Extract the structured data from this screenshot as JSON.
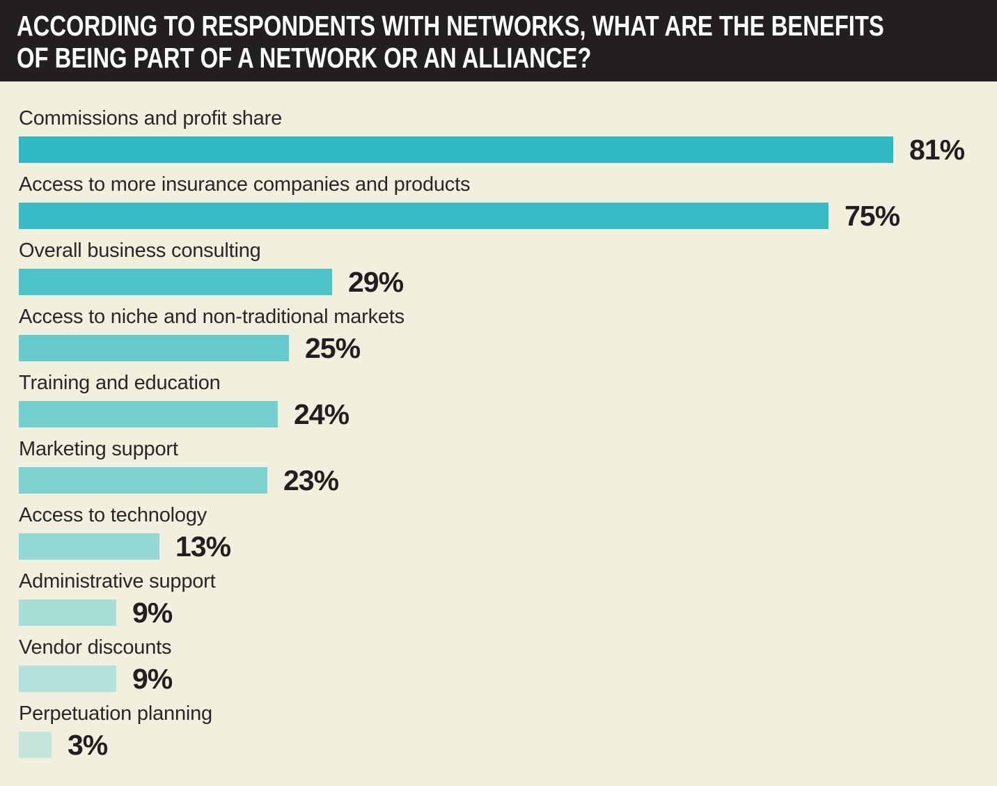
{
  "title": {
    "line1": "ACCORDING TO RESPONDENTS WITH NETWORKS, WHAT ARE THE BENEFITS",
    "line2": "OF BEING PART OF A NETWORK OR AN ALLIANCE?"
  },
  "colors": {
    "background": "#f1efdd",
    "header_background": "#231f20",
    "header_text": "#ffffff",
    "label_text": "#2a2627",
    "value_text": "#231f20"
  },
  "chart_data": {
    "type": "bar",
    "orientation": "horizontal",
    "title": "ACCORDING TO RESPONDENTS WITH NETWORKS, WHAT ARE THE BENEFITS OF BEING PART OF A NETWORK OR AN ALLIANCE?",
    "xlabel": "",
    "ylabel": "",
    "xlim": [
      0,
      81
    ],
    "grid": false,
    "legend": false,
    "categories": [
      "Commissions and profit share",
      "Access to more insurance companies and products",
      "Overall business consulting",
      "Access to niche and non-traditional markets",
      "Training and education",
      "Marketing support",
      "Access to technology",
      "Administrative support",
      "Vendor discounts",
      "Perpetuation planning"
    ],
    "values": [
      81,
      75,
      29,
      25,
      24,
      23,
      13,
      9,
      9,
      3
    ],
    "value_labels": [
      "81%",
      "75%",
      "29%",
      "25%",
      "24%",
      "23%",
      "13%",
      "9%",
      "9%",
      "3%"
    ],
    "bar_colors": [
      "#2fbac3",
      "#35bcc4",
      "#4ec4c9",
      "#65cbcc",
      "#73cfce",
      "#7dd2d0",
      "#92d9d3",
      "#a7ded7",
      "#b3e2da",
      "#c4e6dc"
    ]
  }
}
